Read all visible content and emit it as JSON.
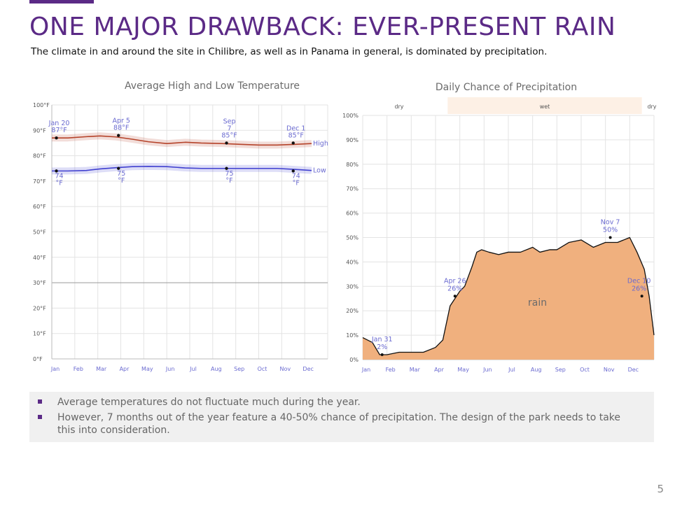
{
  "slide": {
    "title": "ONE MAJOR DRAWBACK: EVER-PRESENT RAIN",
    "subtitle": "The climate in and around the site in Chilibre, as well as in Panama in general, is dominated by precipitation.",
    "page_number": "5",
    "accent_color": "#5b2a86",
    "bullets": [
      "Average temperatures do not fluctuate much during the year.",
      "However, 7 months out of the year feature a 40-50% chance of precipitation.  The design of the park needs to take this into consideration."
    ]
  },
  "chart_data": [
    {
      "type": "line",
      "title": "Average High and Low Temperature",
      "months": [
        "Jan",
        "Feb",
        "Mar",
        "Apr",
        "May",
        "Jun",
        "Jul",
        "Aug",
        "Sep",
        "Oct",
        "Nov",
        "Dec"
      ],
      "y_ticks": [
        "0°F",
        "10°F",
        "20°F",
        "30°F",
        "40°F",
        "50°F",
        "60°F",
        "70°F",
        "80°F",
        "90°F",
        "100°F"
      ],
      "ylim": [
        0,
        100
      ],
      "series": [
        {
          "name": "High",
          "color": "#b5432a",
          "x": [
            0,
            0.7,
            1.5,
            2.1,
            2.8,
            3.5,
            4.2,
            5,
            5.8,
            6.5,
            7.4,
            8.2,
            9,
            9.8,
            10.6,
            11.3
          ],
          "y": [
            87,
            87,
            87.5,
            87.8,
            87.4,
            86.5,
            85.5,
            84.8,
            85.3,
            85,
            84.8,
            84.5,
            84.2,
            84.2,
            84.5,
            84.8
          ]
        },
        {
          "name": "Low",
          "color": "#4040d0",
          "x": [
            0,
            0.7,
            1.5,
            2.1,
            2.8,
            3.5,
            4.2,
            5,
            5.8,
            6.5,
            7.4,
            8.2,
            9,
            9.8,
            10.6,
            11.3
          ],
          "y": [
            74,
            74,
            74.2,
            74.8,
            75.3,
            75.7,
            75.8,
            75.7,
            75.2,
            75,
            75,
            75,
            75,
            75,
            74.6,
            74.2
          ]
        }
      ],
      "annotations": [
        {
          "label_lines": [
            "Jan 20",
            "87°F"
          ],
          "x": 0.2,
          "y": 87
        },
        {
          "label_lines": [
            "Apr 5",
            "88°F"
          ],
          "x": 2.9,
          "y": 88
        },
        {
          "label_lines": [
            "Sep",
            "7",
            "85°F"
          ],
          "x": 7.6,
          "y": 85
        },
        {
          "label_lines": [
            "Dec 1",
            "85°F"
          ],
          "x": 10.5,
          "y": 85
        },
        {
          "label_lines": [
            "74",
            "°F"
          ],
          "x": 0.2,
          "y": 74
        },
        {
          "label_lines": [
            "75",
            "°F"
          ],
          "x": 2.9,
          "y": 75
        },
        {
          "label_lines": [
            "75",
            "°F"
          ],
          "x": 7.6,
          "y": 75
        },
        {
          "label_lines": [
            "74",
            "°F"
          ],
          "x": 10.5,
          "y": 74
        }
      ]
    },
    {
      "type": "area",
      "title": "Daily Chance of Precipitation",
      "months": [
        "Jan",
        "Feb",
        "Mar",
        "Apr",
        "May",
        "Jun",
        "Jul",
        "Aug",
        "Sep",
        "Oct",
        "Nov",
        "Dec"
      ],
      "y_ticks": [
        "0%",
        "10%",
        "20%",
        "30%",
        "40%",
        "50%",
        "60%",
        "70%",
        "80%",
        "90%",
        "100%"
      ],
      "ylim": [
        0,
        100
      ],
      "season_labels": [
        "dry",
        "wet",
        "dry"
      ],
      "area_label": "rain",
      "fill_color": "#f0b07e",
      "wet_band_color": "#fdf0e5",
      "x": [
        0,
        0.4,
        0.7,
        1.0,
        1.5,
        2.0,
        2.5,
        3.0,
        3.3,
        3.6,
        4.0,
        4.2,
        4.5,
        4.7,
        4.9,
        5.2,
        5.6,
        6.0,
        6.5,
        7.0,
        7.3,
        7.7,
        8.0,
        8.5,
        9.0,
        9.5,
        10.0,
        10.5,
        11.0,
        11.3,
        11.6,
        11.8,
        12.0
      ],
      "y": [
        9,
        7,
        2,
        2,
        3,
        3,
        3,
        5,
        8,
        22,
        28,
        30,
        38,
        44,
        45,
        44,
        43,
        44,
        44,
        46,
        44,
        45,
        45,
        48,
        49,
        46,
        48,
        48,
        50,
        44,
        37,
        26,
        10
      ],
      "annotations": [
        {
          "label_lines": [
            "Jan 31",
            "2%"
          ],
          "x": 0.8,
          "y": 2
        },
        {
          "label_lines": [
            "Apr 26",
            "26%"
          ],
          "x": 3.8,
          "y": 26
        },
        {
          "label_lines": [
            "Nov 7",
            "50%"
          ],
          "x": 10.2,
          "y": 50
        },
        {
          "label_lines": [
            "Dec 10",
            "26%"
          ],
          "x": 11.5,
          "y": 26
        }
      ]
    }
  ]
}
